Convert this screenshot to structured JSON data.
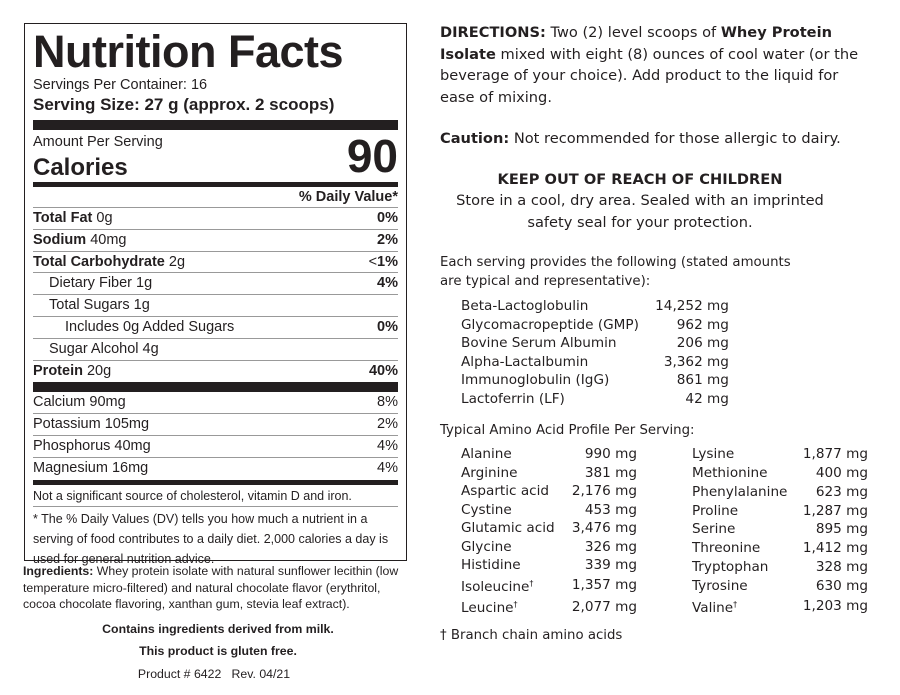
{
  "label": {
    "title": "Nutrition Facts",
    "servings_per_container": "Servings Per Container: 16",
    "serving_size": "Serving Size: 27 g (approx. 2 scoops)",
    "amount_per_serving": "Amount Per Serving",
    "calories_label": "Calories",
    "calories_value": "90",
    "daily_value_header": "% Daily Value*",
    "nutrients": [
      {
        "name": "Total Fat",
        "amount": "0g",
        "dv": "0%"
      },
      {
        "name": "Sodium",
        "amount": "40mg",
        "dv": "2%"
      },
      {
        "name": "Total Carbohydrate",
        "amount": "2g",
        "dv_prefix": "<",
        "dv": "1%"
      },
      {
        "name": "Dietary Fiber 1g",
        "dv": "4%"
      },
      {
        "name": "Total Sugars 1g",
        "dv": ""
      },
      {
        "name": "Includes 0g Added Sugars",
        "dv": "0%"
      },
      {
        "name": "Sugar Alcohol 4g",
        "dv": ""
      },
      {
        "name": "Protein",
        "amount": "20g",
        "dv": "40%"
      }
    ],
    "minerals": [
      {
        "name": "Calcium 90mg",
        "dv": "8%"
      },
      {
        "name": "Potassium 105mg",
        "dv": "2%"
      },
      {
        "name": "Phosphorus 40mg",
        "dv": "4%"
      },
      {
        "name": "Magnesium 16mg",
        "dv": "4%"
      }
    ],
    "not_significant": "Not a significant source of cholesterol, vitamin D and iron.",
    "footnote": "* The % Daily Values (DV) tells you how much a nutrient in a serving of food contributes to a daily diet. 2,000 calories a day is used for general nutrition advice."
  },
  "below": {
    "ingredients_label": "Ingredients:",
    "ingredients": " Whey protein isolate with natural sunflower lecithin (low temperature micro-filtered) and natural chocolate flavor (erythritol, cocoa chocolate flavoring, xanthan gum, stevia leaf extract).",
    "allergen": "Contains ingredients derived from milk.",
    "gluten": "This product is gluten free.",
    "product": "Product # 6422   Rev. 04/21"
  },
  "right": {
    "directions_label": "DIRECTIONS:",
    "directions_1": " Two (2) level scoops of ",
    "directions_bold": "Whey Protein Isolate",
    "directions_2": " mixed with eight (8) ounces of cool water (or the beverage of your choice). Add product to the liquid for ease of mixing.",
    "caution_label": "Caution:",
    "caution": " Not recommended for those allergic to dairy.",
    "keep_out": "KEEP OUT OF REACH OF CHILDREN",
    "storage_1": "Store in a cool, dry area. Sealed with an imprinted",
    "storage_2": "safety seal for your protection.",
    "serving_intro": "Each serving provides the following (stated amounts are typical and representative):",
    "fractions": [
      {
        "name": "Beta-Lactoglobulin",
        "value": "14,252 mg"
      },
      {
        "name": "Glycomacropeptide (GMP)",
        "value": "962 mg"
      },
      {
        "name": "Bovine Serum Albumin",
        "value": "206 mg"
      },
      {
        "name": "Alpha-Lactalbumin",
        "value": "3,362 mg"
      },
      {
        "name": "Immunoglobulin (IgG)",
        "value": "861 mg"
      },
      {
        "name": "Lactoferrin (LF)",
        "value": "42 mg"
      }
    ],
    "amino_title": "Typical Amino Acid Profile Per Serving:",
    "amino_left": [
      {
        "name": "Alanine",
        "value": "990 mg"
      },
      {
        "name": "Arginine",
        "value": "381 mg"
      },
      {
        "name": "Aspartic acid",
        "value": "2,176 mg"
      },
      {
        "name": "Cystine",
        "value": "453 mg"
      },
      {
        "name": "Glutamic acid",
        "value": "3,476 mg"
      },
      {
        "name": "Glycine",
        "value": "326 mg"
      },
      {
        "name": "Histidine",
        "value": "339 mg"
      },
      {
        "name": "Isoleucine",
        "mark": "†",
        "value": "1,357 mg"
      },
      {
        "name": "Leucine",
        "mark": "†",
        "value": "2,077 mg"
      }
    ],
    "amino_right": [
      {
        "name": "Lysine",
        "value": "1,877 mg"
      },
      {
        "name": "Methionine",
        "value": "400 mg"
      },
      {
        "name": "Phenylalanine",
        "value": "623 mg"
      },
      {
        "name": "Proline",
        "value": "1,287 mg"
      },
      {
        "name": "Serine",
        "value": "895 mg"
      },
      {
        "name": "Threonine",
        "value": "1,412 mg"
      },
      {
        "name": "Tryptophan",
        "value": "328 mg"
      },
      {
        "name": "Tyrosine",
        "value": "630 mg"
      },
      {
        "name": "Valine",
        "mark": "†",
        "value": "1,203 mg"
      }
    ],
    "bcaa_note": "† Branch chain amino acids"
  }
}
